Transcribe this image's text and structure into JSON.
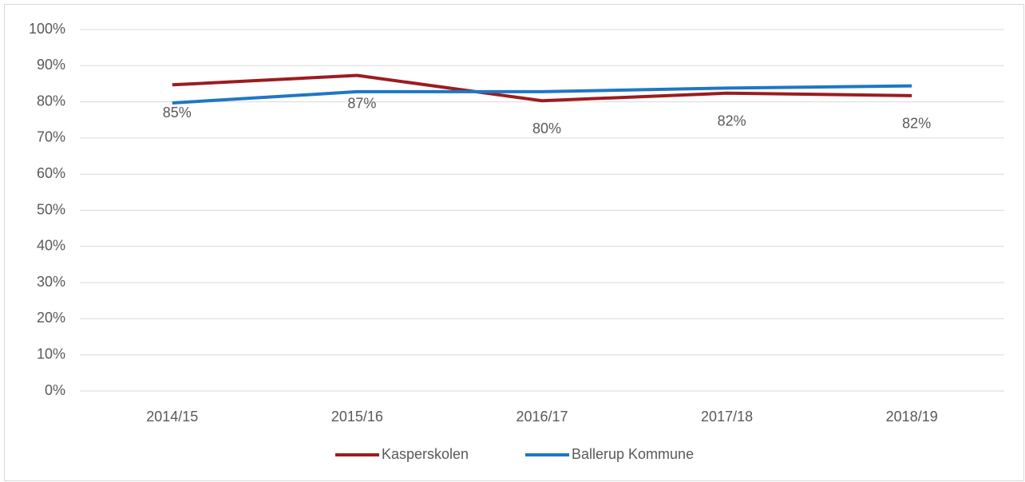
{
  "chart_data": {
    "type": "line",
    "categories": [
      "2014/15",
      "2015/16",
      "2016/17",
      "2017/18",
      "2018/19"
    ],
    "series": [
      {
        "name": "Kasperskolen",
        "color": "#9b1c1f",
        "values": [
          84.7,
          87.3,
          80.3,
          82.4,
          81.7
        ],
        "value_labels": [
          "85%",
          "87%",
          "80%",
          "82%",
          "82%"
        ]
      },
      {
        "name": "Ballerup Kommune",
        "color": "#1f77c4",
        "values": [
          79.7,
          82.8,
          82.8,
          83.8,
          84.4
        ]
      }
    ],
    "ylim": [
      0,
      100
    ],
    "yticks": [
      {
        "value": 0,
        "label": "0%"
      },
      {
        "value": 10,
        "label": "10%"
      },
      {
        "value": 20,
        "label": "20%"
      },
      {
        "value": 30,
        "label": "30%"
      },
      {
        "value": 40,
        "label": "40%"
      },
      {
        "value": 50,
        "label": "50%"
      },
      {
        "value": 60,
        "label": "60%"
      },
      {
        "value": 70,
        "label": "70%"
      },
      {
        "value": 80,
        "label": "80%"
      },
      {
        "value": 90,
        "label": "90%"
      },
      {
        "value": 100,
        "label": "100%"
      }
    ],
    "grid": true,
    "legend": "bottom"
  }
}
